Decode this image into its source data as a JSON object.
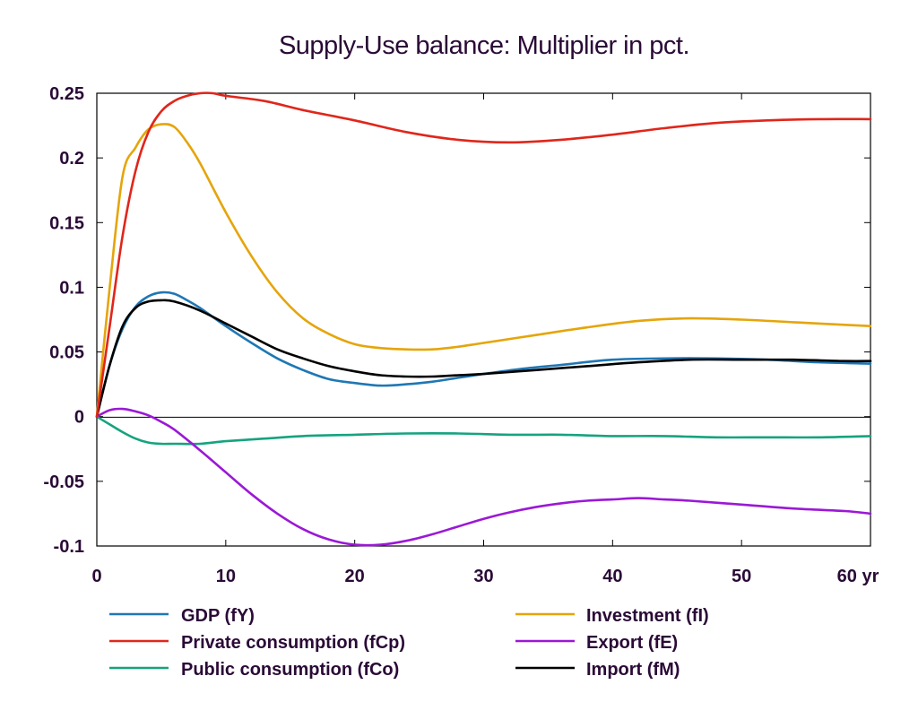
{
  "chart_data": {
    "type": "line",
    "title": "Supply-Use balance: Multiplier in pct.",
    "xlabel": "",
    "ylabel": "",
    "x_unit_label": "yr",
    "xlim": [
      0,
      60
    ],
    "ylim": [
      -0.1,
      0.25
    ],
    "x_ticks": [
      "0",
      "10",
      "20",
      "30",
      "40",
      "50",
      "60 yr"
    ],
    "x_tick_values": [
      0,
      10,
      20,
      30,
      40,
      50,
      60
    ],
    "y_ticks": [
      "0.25",
      "0.2",
      "0.15",
      "0.1",
      "0.05",
      "0",
      "-0.05",
      "-0.1"
    ],
    "y_tick_values": [
      0.25,
      0.2,
      0.15,
      0.1,
      0.05,
      0,
      -0.05,
      -0.1
    ],
    "grid": false,
    "zero_line": true,
    "legend_position": "bottom",
    "series": [
      {
        "name": "GDP (fY)",
        "color": "#1f77b4",
        "points": [
          [
            0,
            0
          ],
          [
            1,
            0.04
          ],
          [
            2,
            0.068
          ],
          [
            3,
            0.085
          ],
          [
            4,
            0.093
          ],
          [
            5,
            0.096
          ],
          [
            6,
            0.095
          ],
          [
            7,
            0.09
          ],
          [
            8,
            0.084
          ],
          [
            10,
            0.07
          ],
          [
            12,
            0.057
          ],
          [
            14,
            0.045
          ],
          [
            16,
            0.036
          ],
          [
            18,
            0.029
          ],
          [
            20,
            0.026
          ],
          [
            22,
            0.024
          ],
          [
            24,
            0.025
          ],
          [
            26,
            0.027
          ],
          [
            28,
            0.03
          ],
          [
            30,
            0.033
          ],
          [
            33,
            0.037
          ],
          [
            36,
            0.04
          ],
          [
            40,
            0.044
          ],
          [
            44,
            0.045
          ],
          [
            48,
            0.045
          ],
          [
            52,
            0.044
          ],
          [
            56,
            0.042
          ],
          [
            60,
            0.041
          ]
        ]
      },
      {
        "name": "Private consumption (fCp)",
        "color": "#e0261b",
        "points": [
          [
            0,
            0
          ],
          [
            1,
            0.07
          ],
          [
            2,
            0.14
          ],
          [
            3,
            0.19
          ],
          [
            4,
            0.22
          ],
          [
            5,
            0.236
          ],
          [
            6,
            0.244
          ],
          [
            7,
            0.248
          ],
          [
            8,
            0.25
          ],
          [
            9,
            0.25
          ],
          [
            10,
            0.248
          ],
          [
            13,
            0.244
          ],
          [
            16,
            0.237
          ],
          [
            20,
            0.229
          ],
          [
            24,
            0.22
          ],
          [
            28,
            0.214
          ],
          [
            32,
            0.212
          ],
          [
            36,
            0.214
          ],
          [
            40,
            0.218
          ],
          [
            44,
            0.223
          ],
          [
            48,
            0.227
          ],
          [
            52,
            0.229
          ],
          [
            56,
            0.23
          ],
          [
            60,
            0.23
          ]
        ]
      },
      {
        "name": "Public consumption (fCo)",
        "color": "#16a37f",
        "points": [
          [
            0,
            0
          ],
          [
            1,
            -0.006
          ],
          [
            2,
            -0.012
          ],
          [
            3,
            -0.017
          ],
          [
            4,
            -0.02
          ],
          [
            5,
            -0.021
          ],
          [
            6,
            -0.021
          ],
          [
            8,
            -0.021
          ],
          [
            10,
            -0.019
          ],
          [
            13,
            -0.017
          ],
          [
            16,
            -0.015
          ],
          [
            20,
            -0.014
          ],
          [
            24,
            -0.013
          ],
          [
            28,
            -0.013
          ],
          [
            32,
            -0.014
          ],
          [
            36,
            -0.014
          ],
          [
            40,
            -0.015
          ],
          [
            44,
            -0.015
          ],
          [
            48,
            -0.016
          ],
          [
            52,
            -0.016
          ],
          [
            56,
            -0.016
          ],
          [
            60,
            -0.015
          ]
        ]
      },
      {
        "name": "Investment (fI)",
        "color": "#e5a50a",
        "points": [
          [
            0,
            0
          ],
          [
            1,
            0.1
          ],
          [
            2,
            0.186
          ],
          [
            3,
            0.208
          ],
          [
            4,
            0.222
          ],
          [
            5,
            0.226
          ],
          [
            6,
            0.224
          ],
          [
            7,
            0.212
          ],
          [
            8,
            0.196
          ],
          [
            10,
            0.158
          ],
          [
            12,
            0.124
          ],
          [
            14,
            0.096
          ],
          [
            16,
            0.076
          ],
          [
            18,
            0.064
          ],
          [
            20,
            0.056
          ],
          [
            22,
            0.053
          ],
          [
            24,
            0.052
          ],
          [
            26,
            0.052
          ],
          [
            28,
            0.054
          ],
          [
            30,
            0.057
          ],
          [
            34,
            0.063
          ],
          [
            38,
            0.069
          ],
          [
            42,
            0.074
          ],
          [
            46,
            0.076
          ],
          [
            50,
            0.075
          ],
          [
            54,
            0.073
          ],
          [
            58,
            0.071
          ],
          [
            60,
            0.07
          ]
        ]
      },
      {
        "name": "Export (fE)",
        "color": "#9b18d6",
        "points": [
          [
            0,
            0
          ],
          [
            1,
            0.005
          ],
          [
            2,
            0.006
          ],
          [
            3,
            0.004
          ],
          [
            4,
            0.001
          ],
          [
            5,
            -0.004
          ],
          [
            6,
            -0.01
          ],
          [
            8,
            -0.026
          ],
          [
            10,
            -0.043
          ],
          [
            12,
            -0.06
          ],
          [
            14,
            -0.075
          ],
          [
            16,
            -0.087
          ],
          [
            18,
            -0.095
          ],
          [
            20,
            -0.099
          ],
          [
            22,
            -0.099
          ],
          [
            24,
            -0.096
          ],
          [
            26,
            -0.091
          ],
          [
            28,
            -0.085
          ],
          [
            30,
            -0.079
          ],
          [
            32,
            -0.074
          ],
          [
            34,
            -0.07
          ],
          [
            36,
            -0.067
          ],
          [
            38,
            -0.065
          ],
          [
            40,
            -0.064
          ],
          [
            42,
            -0.063
          ],
          [
            44,
            -0.064
          ],
          [
            46,
            -0.065
          ],
          [
            50,
            -0.068
          ],
          [
            54,
            -0.071
          ],
          [
            58,
            -0.073
          ],
          [
            60,
            -0.075
          ]
        ]
      },
      {
        "name": "Import (fM)",
        "color": "#000000",
        "points": [
          [
            0,
            0
          ],
          [
            1,
            0.04
          ],
          [
            2,
            0.07
          ],
          [
            3,
            0.084
          ],
          [
            4,
            0.089
          ],
          [
            5,
            0.09
          ],
          [
            6,
            0.089
          ],
          [
            8,
            0.082
          ],
          [
            10,
            0.072
          ],
          [
            12,
            0.062
          ],
          [
            14,
            0.052
          ],
          [
            16,
            0.045
          ],
          [
            18,
            0.039
          ],
          [
            20,
            0.035
          ],
          [
            22,
            0.032
          ],
          [
            24,
            0.031
          ],
          [
            26,
            0.031
          ],
          [
            28,
            0.032
          ],
          [
            30,
            0.033
          ],
          [
            34,
            0.036
          ],
          [
            38,
            0.039
          ],
          [
            42,
            0.042
          ],
          [
            46,
            0.044
          ],
          [
            50,
            0.044
          ],
          [
            54,
            0.044
          ],
          [
            58,
            0.043
          ],
          [
            60,
            0.043
          ]
        ]
      }
    ]
  }
}
